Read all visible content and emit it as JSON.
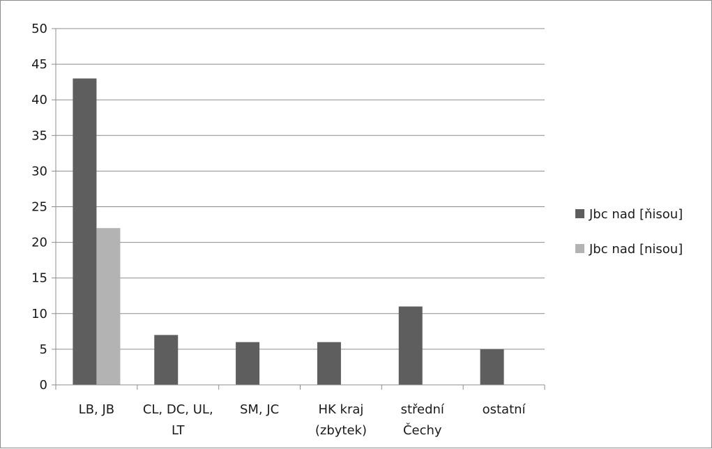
{
  "chart_data": {
    "type": "bar",
    "categories": [
      [
        "LB, JB"
      ],
      [
        "CL, DC, UL,",
        "LT"
      ],
      [
        "SM, JC"
      ],
      [
        "HK kraj",
        "(zbytek)"
      ],
      [
        "střední",
        "Čechy"
      ],
      [
        "ostatní"
      ]
    ],
    "series": [
      {
        "name": "Jbc nad [ňisou]",
        "values": [
          43,
          7,
          6,
          6,
          11,
          5
        ],
        "color": "#5e5e5e"
      },
      {
        "name": "Jbc nad [nisou]",
        "values": [
          22,
          0,
          0,
          0,
          0,
          0
        ],
        "color": "#b3b3b3"
      }
    ],
    "ylim": [
      0,
      50
    ],
    "yticks": [
      0,
      5,
      10,
      15,
      20,
      25,
      30,
      35,
      40,
      45,
      50
    ],
    "grid": true,
    "legend_position": "right",
    "colors": {
      "gridline": "#8c8c8c",
      "axis": "#8c8c8c",
      "frame": "#8c8c8c"
    }
  }
}
